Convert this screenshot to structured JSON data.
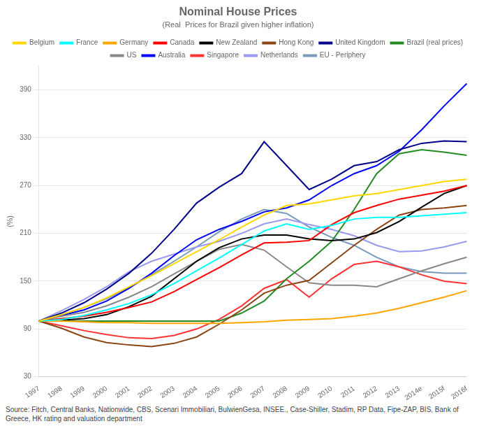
{
  "chart_data": {
    "type": "line",
    "title": "Nominal House Prices",
    "subtitle": "(Real  Prices for Brazil given higher inflation)",
    "y_label": "(%)",
    "source": "Source: Fitch, Central Banks, Nationwide, CBS, Scenari Immobiliari, BulwienGesa, INSEE., Case-Shiller, Stadim, RP Data, Fipe-ZAP, BIS, Bank of\nGreece, HK rating and valuation department",
    "categories": [
      "1997",
      "1998",
      "1999",
      "2000",
      "2001",
      "2002",
      "2003",
      "2004",
      "2005",
      "2006",
      "2007",
      "2008",
      "2009",
      "2010",
      "2011",
      "2012",
      "2013",
      "2014e",
      "2015f",
      "2016f"
    ],
    "series": [
      {
        "name": "Belgium",
        "color": "#FFD700",
        "values": [
          100,
          108,
          117,
          129,
          143,
          157,
          172,
          187,
          202,
          218,
          233,
          245,
          247,
          252,
          257,
          260,
          265,
          270,
          275,
          278
        ]
      },
      {
        "name": "France",
        "color": "#00FFFF",
        "values": [
          100,
          102,
          107,
          114,
          122,
          133,
          147,
          163,
          179,
          196,
          213,
          222,
          215,
          220,
          228,
          230,
          230,
          232,
          234,
          236
        ]
      },
      {
        "name": "Germany",
        "color": "#FFA500",
        "values": [
          100,
          100,
          99,
          98,
          98,
          97,
          97,
          97,
          97,
          98,
          99,
          101,
          102,
          103,
          106,
          110,
          116,
          123,
          130,
          138
        ]
      },
      {
        "name": "Canada",
        "color": "#FF0000",
        "values": [
          100,
          103,
          106,
          111,
          117,
          124,
          137,
          152,
          167,
          183,
          198,
          199,
          201,
          221,
          236,
          245,
          253,
          258,
          263,
          270
        ]
      },
      {
        "name": "New Zealand",
        "color": "#000000",
        "values": [
          100,
          101,
          103,
          108,
          118,
          131,
          153,
          175,
          192,
          203,
          208,
          208,
          203,
          201,
          203,
          211,
          225,
          243,
          260,
          270
        ]
      },
      {
        "name": "Hong Kong",
        "color": "#8B4513",
        "values": [
          100,
          91,
          80,
          73,
          70,
          68,
          72,
          80,
          96,
          114,
          135,
          145,
          151,
          173,
          195,
          215,
          233,
          240,
          242,
          245
        ]
      },
      {
        "name": "United Kingdom",
        "color": "#00008B",
        "values": [
          100,
          110,
          123,
          140,
          160,
          185,
          215,
          248,
          268,
          285,
          325,
          295,
          265,
          278,
          295,
          300,
          315,
          323,
          326,
          325
        ]
      },
      {
        "name": "Brazil (real prices)",
        "color": "#228B22",
        "values": [
          100,
          100,
          100,
          100,
          100,
          100,
          100,
          100,
          100,
          110,
          125,
          153,
          175,
          200,
          240,
          285,
          310,
          315,
          312,
          308
        ]
      },
      {
        "name": "US",
        "color": "#888888",
        "values": [
          100,
          106,
          111,
          119,
          130,
          143,
          159,
          175,
          190,
          196,
          189,
          168,
          148,
          145,
          145,
          143,
          153,
          163,
          172,
          180
        ]
      },
      {
        "name": "Australia",
        "color": "#0000FF",
        "values": [
          100,
          107,
          114,
          125,
          141,
          160,
          182,
          202,
          215,
          225,
          237,
          242,
          252,
          270,
          285,
          295,
          313,
          340,
          370,
          398
        ]
      },
      {
        "name": "Singapore",
        "color": "#FF3333",
        "values": [
          100,
          94,
          88,
          83,
          79,
          78,
          82,
          90,
          102,
          119,
          141,
          152,
          130,
          153,
          171,
          175,
          168,
          158,
          150,
          147
        ]
      },
      {
        "name": "Netherlands",
        "color": "#9999EE",
        "values": [
          100,
          113,
          127,
          143,
          162,
          175,
          184,
          193,
          200,
          210,
          222,
          228,
          221,
          215,
          207,
          195,
          187,
          188,
          193,
          200
        ]
      },
      {
        "name": "EU - Periphery",
        "color": "#7799BB",
        "values": [
          100,
          108,
          117,
          128,
          142,
          158,
          175,
          193,
          212,
          228,
          240,
          235,
          218,
          205,
          195,
          180,
          168,
          162,
          160,
          160
        ]
      }
    ],
    "ylim": [
      30,
      420
    ],
    "yticks": [
      30,
      90,
      150,
      210,
      270,
      330,
      390
    ],
    "grid": "y",
    "legend": "top"
  }
}
